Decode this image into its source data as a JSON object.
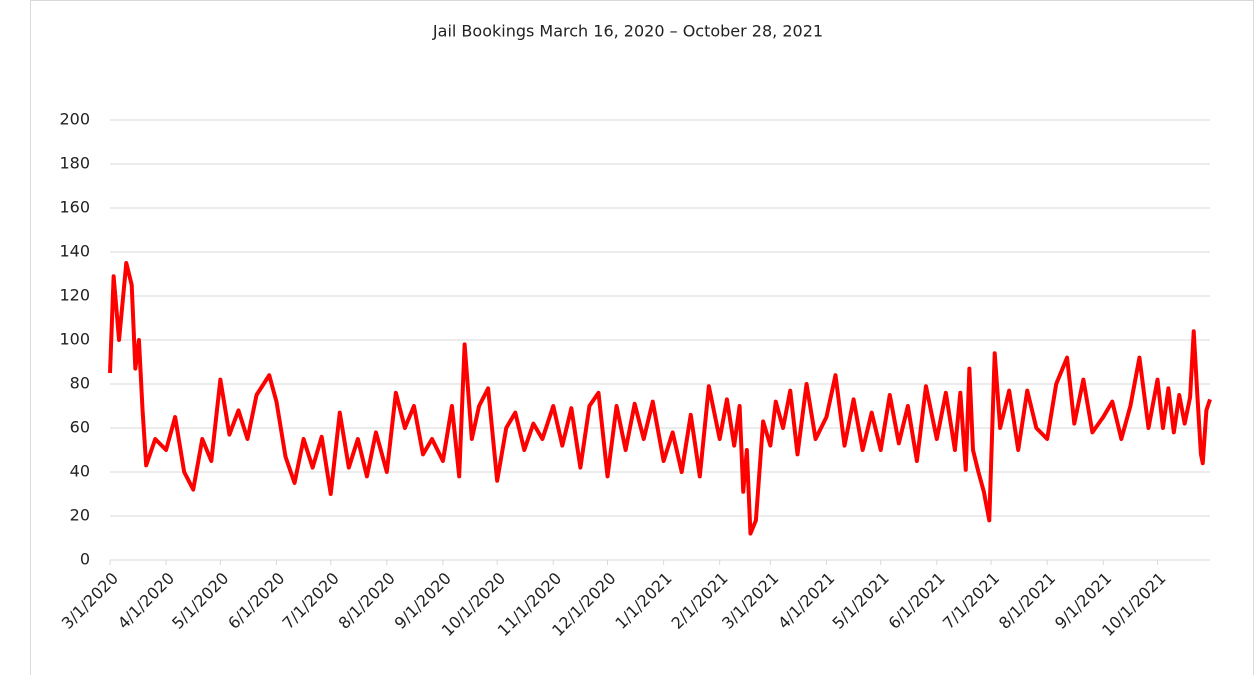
{
  "chart_data": {
    "type": "line",
    "title": "Jail Bookings March 16, 2020 – October 28, 2021",
    "x": [
      "3/1/2020",
      "3/3/2020",
      "3/6/2020",
      "3/10/2020",
      "3/13/2020",
      "3/15/2020",
      "3/17/2020",
      "3/19/2020",
      "3/21/2020",
      "3/26/2020",
      "4/1/2020",
      "4/6/2020",
      "4/11/2020",
      "4/16/2020",
      "4/21/2020",
      "4/26/2020",
      "5/1/2020",
      "5/6/2020",
      "5/11/2020",
      "5/16/2020",
      "5/21/2020",
      "5/28/2020",
      "6/1/2020",
      "6/6/2020",
      "6/11/2020",
      "6/16/2020",
      "6/21/2020",
      "6/26/2020",
      "7/1/2020",
      "7/6/2020",
      "7/11/2020",
      "7/16/2020",
      "7/21/2020",
      "7/26/2020",
      "8/1/2020",
      "8/6/2020",
      "8/11/2020",
      "8/16/2020",
      "8/21/2020",
      "8/26/2020",
      "9/1/2020",
      "9/6/2020",
      "9/10/2020",
      "9/13/2020",
      "9/17/2020",
      "9/21/2020",
      "9/26/2020",
      "10/1/2020",
      "10/6/2020",
      "10/11/2020",
      "10/16/2020",
      "10/21/2020",
      "10/26/2020",
      "11/1/2020",
      "11/6/2020",
      "11/11/2020",
      "11/16/2020",
      "11/21/2020",
      "11/26/2020",
      "12/1/2020",
      "12/6/2020",
      "12/11/2020",
      "12/16/2020",
      "12/21/2020",
      "12/26/2020",
      "1/1/2021",
      "1/6/2021",
      "1/11/2021",
      "1/16/2021",
      "1/21/2021",
      "1/26/2021",
      "2/1/2021",
      "2/5/2021",
      "2/9/2021",
      "2/12/2021",
      "2/14/2021",
      "2/16/2021",
      "2/18/2021",
      "2/21/2021",
      "2/25/2021",
      "3/1/2021",
      "3/4/2021",
      "3/8/2021",
      "3/12/2021",
      "3/16/2021",
      "3/21/2021",
      "3/26/2021",
      "4/1/2021",
      "4/6/2021",
      "4/11/2021",
      "4/16/2021",
      "4/21/2021",
      "4/26/2021",
      "5/1/2021",
      "5/6/2021",
      "5/11/2021",
      "5/16/2021",
      "5/21/2021",
      "5/26/2021",
      "6/1/2021",
      "6/6/2021",
      "6/11/2021",
      "6/14/2021",
      "6/17/2021",
      "6/19/2021",
      "6/21/2021",
      "6/24/2021",
      "6/27/2021",
      "6/30/2021",
      "7/3/2021",
      "7/6/2021",
      "7/11/2021",
      "7/16/2021",
      "7/21/2021",
      "7/26/2021",
      "8/1/2021",
      "8/6/2021",
      "8/12/2021",
      "8/16/2021",
      "8/21/2021",
      "8/26/2021",
      "9/1/2021",
      "9/6/2021",
      "9/11/2021",
      "9/16/2021",
      "9/21/2021",
      "9/26/2021",
      "10/1/2021",
      "10/4/2021",
      "10/7/2021",
      "10/10/2021",
      "10/13/2021",
      "10/16/2021",
      "10/19/2021",
      "10/21/2021",
      "10/23/2021",
      "10/25/2021",
      "10/26/2021",
      "10/28/2021",
      "10/30/2021"
    ],
    "series": [
      {
        "color": "#ff0000",
        "values": [
          85,
          129,
          100,
          135,
          125,
          87,
          100,
          68,
          43,
          55,
          50,
          65,
          40,
          32,
          55,
          45,
          82,
          57,
          68,
          55,
          75,
          84,
          72,
          47,
          35,
          55,
          42,
          56,
          30,
          67,
          42,
          55,
          38,
          58,
          40,
          76,
          60,
          70,
          48,
          55,
          45,
          70,
          38,
          98,
          55,
          70,
          78,
          36,
          60,
          67,
          50,
          62,
          55,
          70,
          52,
          69,
          42,
          70,
          76,
          38,
          70,
          50,
          71,
          55,
          72,
          45,
          58,
          40,
          66,
          38,
          79,
          55,
          73,
          52,
          70,
          31,
          50,
          12,
          18,
          63,
          52,
          72,
          60,
          77,
          48,
          80,
          55,
          65,
          84,
          52,
          73,
          50,
          67,
          50,
          75,
          53,
          70,
          45,
          79,
          55,
          76,
          50,
          76,
          41,
          87,
          50,
          40,
          31,
          18,
          94,
          60,
          77,
          50,
          77,
          60,
          55,
          80,
          92,
          62,
          82,
          58,
          65,
          72,
          55,
          70,
          92,
          60,
          82,
          60,
          78,
          58,
          75,
          62,
          74,
          104,
          75,
          48,
          44,
          68,
          73
        ]
      }
    ],
    "xlim": [
      "3/1/2020",
      "10/30/2021"
    ],
    "xticks": [
      "3/1/2020",
      "4/1/2020",
      "5/1/2020",
      "6/1/2020",
      "7/1/2020",
      "8/1/2020",
      "9/1/2020",
      "10/1/2020",
      "11/1/2020",
      "12/1/2020",
      "1/1/2021",
      "2/1/2021",
      "3/1/2021",
      "4/1/2021",
      "5/1/2021",
      "6/1/2021",
      "7/1/2021",
      "8/1/2021",
      "9/1/2021",
      "10/1/2021"
    ],
    "ylim": [
      0,
      200
    ],
    "yticks": [
      0,
      20,
      40,
      60,
      80,
      100,
      120,
      140,
      160,
      180,
      200
    ],
    "grid": true
  }
}
